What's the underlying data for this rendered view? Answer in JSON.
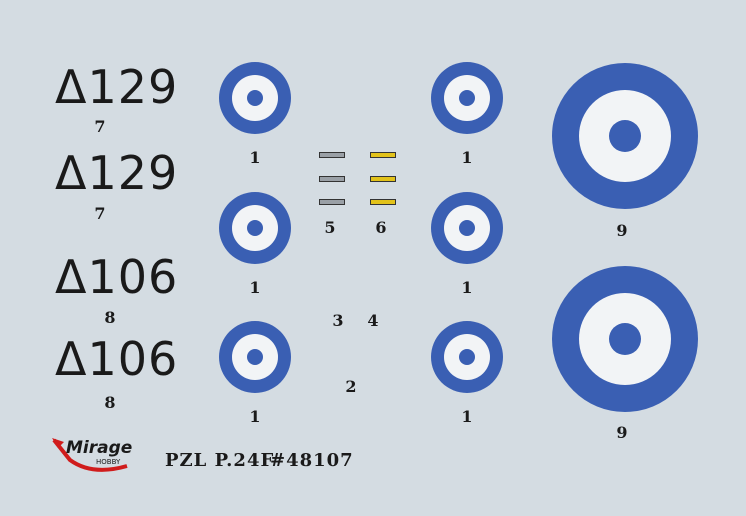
{
  "codes": [
    {
      "text": "Δ129",
      "number": "7"
    },
    {
      "text": "Δ129",
      "number": "7"
    },
    {
      "text": "Δ106",
      "number": "8"
    },
    {
      "text": "Δ106",
      "number": "8"
    }
  ],
  "roundel_numbers": {
    "small": "1",
    "large": "9"
  },
  "misc_numbers": {
    "n2": "2",
    "n3": "3",
    "n4": "4",
    "n5": "5",
    "n6": "6"
  },
  "logo": {
    "text": "Mirage",
    "subtext": "HOBBY"
  },
  "title": {
    "model": "PZL P.24F",
    "catalog": "#48107"
  },
  "colors": {
    "roundel_blue": "#3a5fb3",
    "roundel_white": "#f2f4f6",
    "sheet": "#d4dce2",
    "logo_red": "#d01c1c",
    "stripe_yellow": "#e2c21a"
  }
}
